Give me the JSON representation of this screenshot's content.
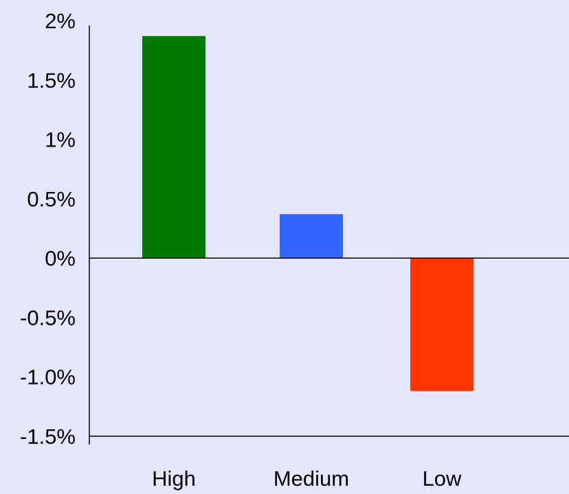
{
  "chart_data": {
    "type": "bar",
    "title": "",
    "xlabel": "",
    "ylabel": "",
    "categories": [
      "High",
      "Medium",
      "Low"
    ],
    "values": [
      1.87,
      0.37,
      -1.12
    ],
    "bar_colors": [
      "#007a00",
      "#3366ff",
      "#ff3300"
    ],
    "ylim": [
      -1.5,
      2
    ],
    "yticks": [
      2,
      1.5,
      1,
      0.5,
      0,
      -0.5,
      -1.0,
      -1.5
    ],
    "ytick_labels": [
      "2%",
      "1.5%",
      "1%",
      "0.5%",
      "0%",
      "-0.5%",
      "-1.0%",
      "-1.5%"
    ],
    "grid": false,
    "legend": "none"
  },
  "colors": {
    "background": "#e6e6fa",
    "axis": "#000000"
  }
}
